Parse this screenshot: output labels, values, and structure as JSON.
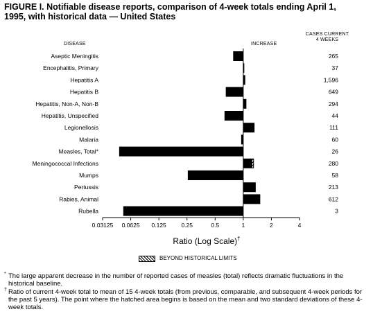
{
  "figure_title": "FIGURE I. Notifiable disease reports, comparison of 4-week totals ending April 1, 1995, with historical data — United States",
  "headers": {
    "disease": "DISEASE",
    "increase": "INCREASE",
    "cases_line1": "CASES CURRENT",
    "cases_line2": "4 WEEKS"
  },
  "legend_label": "BEYOND HISTORICAL LIMITS",
  "footnotes": [
    {
      "mark": "*",
      "text": "The large apparent decrease in the number of reported cases of measles (total) reflects dramatic fluctuations in the historical baseline."
    },
    {
      "mark": "†",
      "text": "Ratio of current 4-week total to mean of 15 4-week totals (from previous, comparable, and subsequent 4-week periods for the past 5 years). The point where the hatched area begins is based on the mean and two standard deviations of these 4-week totals."
    }
  ],
  "chart_data": {
    "type": "bar",
    "orientation": "horizontal",
    "xscale": "log2",
    "xlabel": "Ratio (Log Scale)",
    "xlabel_mark": "†",
    "xlim": [
      0.03125,
      4
    ],
    "xticks": [
      0.03125,
      0.0625,
      0.125,
      0.25,
      0.5,
      1,
      2,
      4
    ],
    "xtick_labels": [
      "0.03125",
      "0.0625",
      "0.125",
      "0.25",
      "0.5",
      "1",
      "2",
      "4"
    ],
    "baseline": 1,
    "categories": [
      "Aseptic Meningitis",
      "Encephalitis, Primary",
      "Hepatitis A",
      "Hepatitis B",
      "Hepatitis, Non-A, Non-B",
      "Hepatitis, Unspecified",
      "Legionellosis",
      "Malaria",
      "Measles, Total*",
      "Meningococcal Infections",
      "Mumps",
      "Pertussis",
      "Rabies, Animal",
      "Rubella"
    ],
    "values": [
      0.78,
      1.02,
      1.05,
      0.65,
      1.08,
      0.63,
      1.32,
      0.95,
      0.047,
      1.3,
      0.255,
      1.36,
      1.52,
      0.052
    ],
    "beyond_limits_from": [
      null,
      null,
      null,
      null,
      null,
      null,
      null,
      null,
      null,
      1.25,
      null,
      null,
      null,
      null
    ],
    "cases": [
      "265",
      "37",
      "1,596",
      "649",
      "294",
      "44",
      "111",
      "60",
      "26",
      "280",
      "58",
      "213",
      "612",
      "3"
    ],
    "grid": false,
    "colors": {
      "bar": "#000000",
      "background": "#ffffff"
    }
  }
}
